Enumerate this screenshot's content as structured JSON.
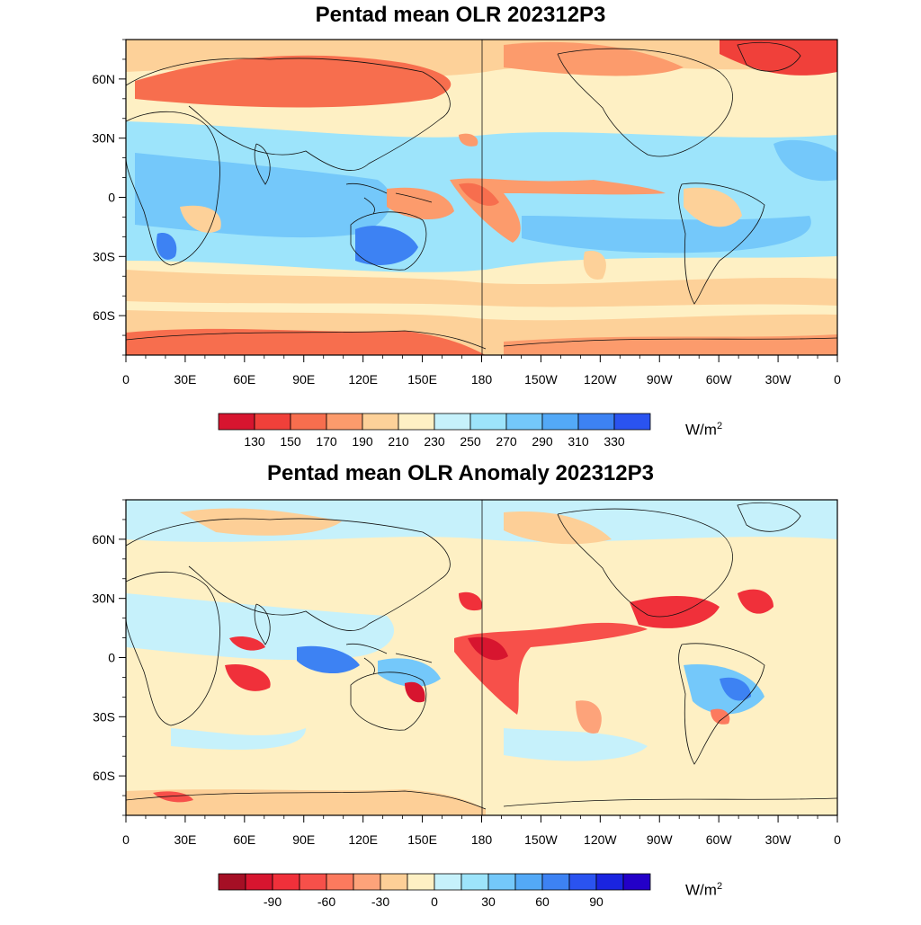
{
  "maps": [
    {
      "title": "Pentad mean OLR 202312P3",
      "colorbar": {
        "colors": [
          "#d7152f",
          "#f0403a",
          "#f76e4e",
          "#fc9b6c",
          "#fdd199",
          "#fef0c4",
          "#c6f1fb",
          "#9de4fb",
          "#74c8fa",
          "#53a9f7",
          "#3d82f3",
          "#2a53f0"
        ],
        "ticks": [
          "130",
          "150",
          "170",
          "190",
          "210",
          "230",
          "250",
          "270",
          "290",
          "310",
          "330"
        ],
        "unit_base": "W/m",
        "unit_exp": "2"
      }
    },
    {
      "title": "Pentad mean OLR Anomaly 202312P3",
      "colorbar": {
        "colors": [
          "#a50f25",
          "#d7152f",
          "#f0303a",
          "#f7504a",
          "#fc7a5e",
          "#fda37a",
          "#fdcf97",
          "#fef0c4",
          "#c6f1fb",
          "#9de4fb",
          "#74c8fa",
          "#53a9f7",
          "#3d82f3",
          "#2a53f0",
          "#1a24e0",
          "#2300c8"
        ],
        "ticks": [
          "-90",
          "-60",
          "-30",
          "0",
          "30",
          "60",
          "90"
        ],
        "unit_base": "W/m",
        "unit_exp": "2"
      }
    }
  ],
  "axes": {
    "lon_labels": [
      "0",
      "30E",
      "60E",
      "90E",
      "120E",
      "150E",
      "180",
      "150W",
      "120W",
      "90W",
      "60W",
      "30W",
      "0"
    ],
    "lat_labels": [
      "60N",
      "30N",
      "0",
      "30S",
      "60S"
    ]
  }
}
